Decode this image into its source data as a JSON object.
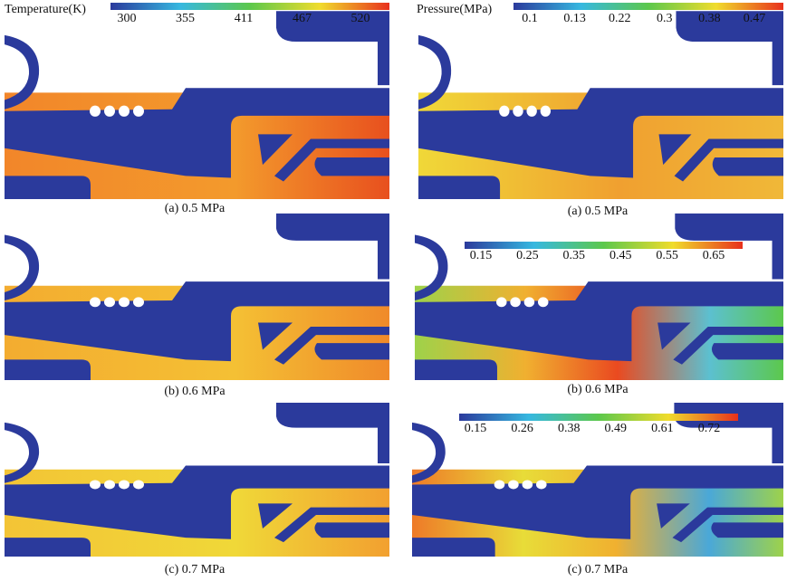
{
  "panels": [
    {
      "caption": "(a) 0.5 MPa"
    },
    {
      "caption": "(a) 0.5 MPa"
    },
    {
      "caption": "(b) 0.6 MPa"
    },
    {
      "caption": "(b) 0.6 MPa"
    },
    {
      "caption": "(c) 0.7 MPa"
    },
    {
      "caption": "(c) 0.7 MPa"
    }
  ],
  "colorbars": [
    {
      "label": "Temperature(K)",
      "ticks": [
        300,
        355,
        411,
        467,
        520
      ]
    },
    {
      "label": "Pressure(MPa)",
      "ticks": [
        0.1,
        0.13,
        0.22,
        0.3,
        0.38,
        0.47
      ]
    },
    {
      "ticks": [
        0.15,
        0.25,
        0.35,
        0.45,
        0.55,
        0.65
      ]
    },
    {
      "ticks": [
        0.15,
        0.26,
        0.38,
        0.49,
        0.61,
        0.72
      ]
    }
  ]
}
